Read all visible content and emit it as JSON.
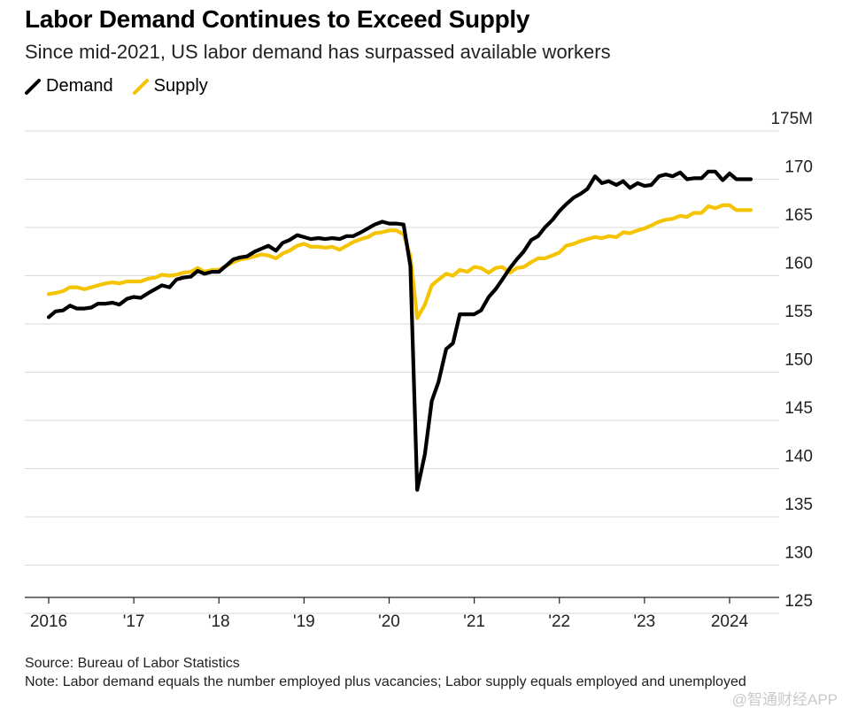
{
  "header": {
    "title": "Labor Demand Continues to Exceed Supply",
    "subtitle": "Since mid-2021, US labor demand has surpassed available workers"
  },
  "legend": {
    "items": [
      {
        "label": "Demand",
        "color": "#000000"
      },
      {
        "label": "Supply",
        "color": "#f5c400"
      }
    ]
  },
  "footer": {
    "source": "Source: Bureau of Labor Statistics",
    "note": "Note: Labor demand equals the number employed plus vacancies; Labor supply equals employed and unemployed"
  },
  "watermark": "@智通财经APP",
  "chart_data": {
    "type": "line",
    "x_ticks": [
      {
        "label": "2016",
        "x": 2016
      },
      {
        "label": "'17",
        "x": 2017
      },
      {
        "label": "'18",
        "x": 2018
      },
      {
        "label": "'19",
        "x": 2019
      },
      {
        "label": "'20",
        "x": 2020
      },
      {
        "label": "'21",
        "x": 2021
      },
      {
        "label": "'22",
        "x": 2022
      },
      {
        "label": "'23",
        "x": 2023
      },
      {
        "label": "2024",
        "x": 2024
      }
    ],
    "y_ticks": [
      {
        "label": "175M",
        "value": 175
      },
      {
        "label": "170",
        "value": 170
      },
      {
        "label": "165",
        "value": 165
      },
      {
        "label": "160",
        "value": 160
      },
      {
        "label": "155",
        "value": 155
      },
      {
        "label": "150",
        "value": 150
      },
      {
        "label": "145",
        "value": 145
      },
      {
        "label": "140",
        "value": 140
      },
      {
        "label": "135",
        "value": 135
      },
      {
        "label": "130",
        "value": 130
      },
      {
        "label": "125",
        "value": 125
      }
    ],
    "xlim": [
      2016,
      2024.3
    ],
    "ylim": [
      124,
      175.5
    ],
    "grid": true,
    "series": [
      {
        "name": "Demand",
        "color": "#000000",
        "points": [
          [
            2016.0,
            155.7
          ],
          [
            2016.08,
            156.3
          ],
          [
            2016.17,
            156.4
          ],
          [
            2016.25,
            156.9
          ],
          [
            2016.33,
            156.6
          ],
          [
            2016.42,
            156.6
          ],
          [
            2016.5,
            156.7
          ],
          [
            2016.58,
            157.1
          ],
          [
            2016.67,
            157.1
          ],
          [
            2016.75,
            157.2
          ],
          [
            2016.83,
            157.0
          ],
          [
            2016.92,
            157.6
          ],
          [
            2017.0,
            157.8
          ],
          [
            2017.08,
            157.7
          ],
          [
            2017.17,
            158.2
          ],
          [
            2017.25,
            158.6
          ],
          [
            2017.33,
            159.0
          ],
          [
            2017.42,
            158.8
          ],
          [
            2017.5,
            159.6
          ],
          [
            2017.58,
            159.8
          ],
          [
            2017.67,
            159.9
          ],
          [
            2017.75,
            160.5
          ],
          [
            2017.83,
            160.2
          ],
          [
            2017.92,
            160.4
          ],
          [
            2018.0,
            160.4
          ],
          [
            2018.08,
            161.0
          ],
          [
            2018.17,
            161.7
          ],
          [
            2018.25,
            161.9
          ],
          [
            2018.33,
            162.0
          ],
          [
            2018.42,
            162.5
          ],
          [
            2018.5,
            162.8
          ],
          [
            2018.58,
            163.1
          ],
          [
            2018.67,
            162.6
          ],
          [
            2018.75,
            163.4
          ],
          [
            2018.83,
            163.7
          ],
          [
            2018.92,
            164.2
          ],
          [
            2019.0,
            164.0
          ],
          [
            2019.08,
            163.8
          ],
          [
            2019.17,
            163.9
          ],
          [
            2019.25,
            163.8
          ],
          [
            2019.33,
            163.9
          ],
          [
            2019.42,
            163.8
          ],
          [
            2019.5,
            164.1
          ],
          [
            2019.58,
            164.1
          ],
          [
            2019.67,
            164.5
          ],
          [
            2019.75,
            164.9
          ],
          [
            2019.83,
            165.3
          ],
          [
            2019.92,
            165.6
          ],
          [
            2020.0,
            165.4
          ],
          [
            2020.08,
            165.4
          ],
          [
            2020.17,
            165.3
          ],
          [
            2020.25,
            161.0
          ],
          [
            2020.33,
            137.8
          ],
          [
            2020.42,
            141.5
          ],
          [
            2020.5,
            147.0
          ],
          [
            2020.58,
            149.0
          ],
          [
            2020.67,
            152.4
          ],
          [
            2020.75,
            153.0
          ],
          [
            2020.83,
            156.0
          ],
          [
            2020.92,
            156.0
          ],
          [
            2021.0,
            156.0
          ],
          [
            2021.08,
            156.4
          ],
          [
            2021.17,
            157.8
          ],
          [
            2021.25,
            158.6
          ],
          [
            2021.33,
            159.6
          ],
          [
            2021.42,
            160.8
          ],
          [
            2021.5,
            161.7
          ],
          [
            2021.58,
            162.5
          ],
          [
            2021.67,
            163.7
          ],
          [
            2021.75,
            164.1
          ],
          [
            2021.83,
            165.0
          ],
          [
            2021.92,
            165.8
          ],
          [
            2022.0,
            166.7
          ],
          [
            2022.08,
            167.4
          ],
          [
            2022.17,
            168.1
          ],
          [
            2022.25,
            168.5
          ],
          [
            2022.33,
            169.0
          ],
          [
            2022.42,
            170.3
          ],
          [
            2022.5,
            169.6
          ],
          [
            2022.58,
            169.8
          ],
          [
            2022.67,
            169.4
          ],
          [
            2022.75,
            169.8
          ],
          [
            2022.83,
            169.1
          ],
          [
            2022.92,
            169.6
          ],
          [
            2023.0,
            169.3
          ],
          [
            2023.08,
            169.4
          ],
          [
            2023.17,
            170.3
          ],
          [
            2023.25,
            170.5
          ],
          [
            2023.33,
            170.3
          ],
          [
            2023.42,
            170.7
          ],
          [
            2023.5,
            170.0
          ],
          [
            2023.58,
            170.1
          ],
          [
            2023.67,
            170.1
          ],
          [
            2023.75,
            170.8
          ],
          [
            2023.83,
            170.8
          ],
          [
            2023.92,
            169.9
          ],
          [
            2024.0,
            170.6
          ],
          [
            2024.08,
            170.0
          ],
          [
            2024.17,
            170.0
          ],
          [
            2024.25,
            170.0
          ]
        ]
      },
      {
        "name": "Supply",
        "color": "#f5c400",
        "points": [
          [
            2016.0,
            158.1
          ],
          [
            2016.08,
            158.2
          ],
          [
            2016.17,
            158.4
          ],
          [
            2016.25,
            158.8
          ],
          [
            2016.33,
            158.8
          ],
          [
            2016.42,
            158.6
          ],
          [
            2016.5,
            158.8
          ],
          [
            2016.58,
            159.0
          ],
          [
            2016.67,
            159.2
          ],
          [
            2016.75,
            159.3
          ],
          [
            2016.83,
            159.2
          ],
          [
            2016.92,
            159.4
          ],
          [
            2017.0,
            159.4
          ],
          [
            2017.08,
            159.4
          ],
          [
            2017.17,
            159.7
          ],
          [
            2017.25,
            159.8
          ],
          [
            2017.33,
            160.1
          ],
          [
            2017.42,
            160.0
          ],
          [
            2017.5,
            160.1
          ],
          [
            2017.58,
            160.3
          ],
          [
            2017.67,
            160.4
          ],
          [
            2017.75,
            160.8
          ],
          [
            2017.83,
            160.4
          ],
          [
            2017.92,
            160.6
          ],
          [
            2018.0,
            160.6
          ],
          [
            2018.08,
            161.0
          ],
          [
            2018.17,
            161.4
          ],
          [
            2018.25,
            161.7
          ],
          [
            2018.33,
            161.8
          ],
          [
            2018.42,
            162.0
          ],
          [
            2018.5,
            162.2
          ],
          [
            2018.58,
            162.1
          ],
          [
            2018.67,
            161.8
          ],
          [
            2018.75,
            162.3
          ],
          [
            2018.83,
            162.6
          ],
          [
            2018.92,
            163.1
          ],
          [
            2019.0,
            163.3
          ],
          [
            2019.08,
            163.0
          ],
          [
            2019.17,
            163.0
          ],
          [
            2019.25,
            162.9
          ],
          [
            2019.33,
            163.0
          ],
          [
            2019.42,
            162.7
          ],
          [
            2019.5,
            163.1
          ],
          [
            2019.58,
            163.5
          ],
          [
            2019.67,
            163.8
          ],
          [
            2019.75,
            164.0
          ],
          [
            2019.83,
            164.4
          ],
          [
            2019.92,
            164.5
          ],
          [
            2020.0,
            164.7
          ],
          [
            2020.08,
            164.7
          ],
          [
            2020.17,
            164.3
          ],
          [
            2020.25,
            162.0
          ],
          [
            2020.33,
            155.6
          ],
          [
            2020.42,
            157.0
          ],
          [
            2020.5,
            159.0
          ],
          [
            2020.58,
            159.6
          ],
          [
            2020.67,
            160.2
          ],
          [
            2020.75,
            160.0
          ],
          [
            2020.83,
            160.6
          ],
          [
            2020.92,
            160.4
          ],
          [
            2021.0,
            160.9
          ],
          [
            2021.08,
            160.8
          ],
          [
            2021.17,
            160.3
          ],
          [
            2021.25,
            160.8
          ],
          [
            2021.33,
            160.9
          ],
          [
            2021.42,
            160.3
          ],
          [
            2021.5,
            160.8
          ],
          [
            2021.58,
            160.9
          ],
          [
            2021.67,
            161.4
          ],
          [
            2021.75,
            161.8
          ],
          [
            2021.83,
            161.8
          ],
          [
            2021.92,
            162.1
          ],
          [
            2022.0,
            162.4
          ],
          [
            2022.08,
            163.1
          ],
          [
            2022.17,
            163.3
          ],
          [
            2022.25,
            163.6
          ],
          [
            2022.33,
            163.8
          ],
          [
            2022.42,
            164.0
          ],
          [
            2022.5,
            163.9
          ],
          [
            2022.58,
            164.1
          ],
          [
            2022.67,
            164.0
          ],
          [
            2022.75,
            164.5
          ],
          [
            2022.83,
            164.4
          ],
          [
            2022.92,
            164.7
          ],
          [
            2023.0,
            164.9
          ],
          [
            2023.08,
            165.2
          ],
          [
            2023.17,
            165.6
          ],
          [
            2023.25,
            165.8
          ],
          [
            2023.33,
            165.9
          ],
          [
            2023.42,
            166.2
          ],
          [
            2023.5,
            166.1
          ],
          [
            2023.58,
            166.5
          ],
          [
            2023.67,
            166.5
          ],
          [
            2023.75,
            167.2
          ],
          [
            2023.83,
            167.0
          ],
          [
            2023.92,
            167.3
          ],
          [
            2024.0,
            167.3
          ],
          [
            2024.08,
            166.8
          ],
          [
            2024.17,
            166.8
          ],
          [
            2024.25,
            166.8
          ]
        ]
      }
    ]
  }
}
